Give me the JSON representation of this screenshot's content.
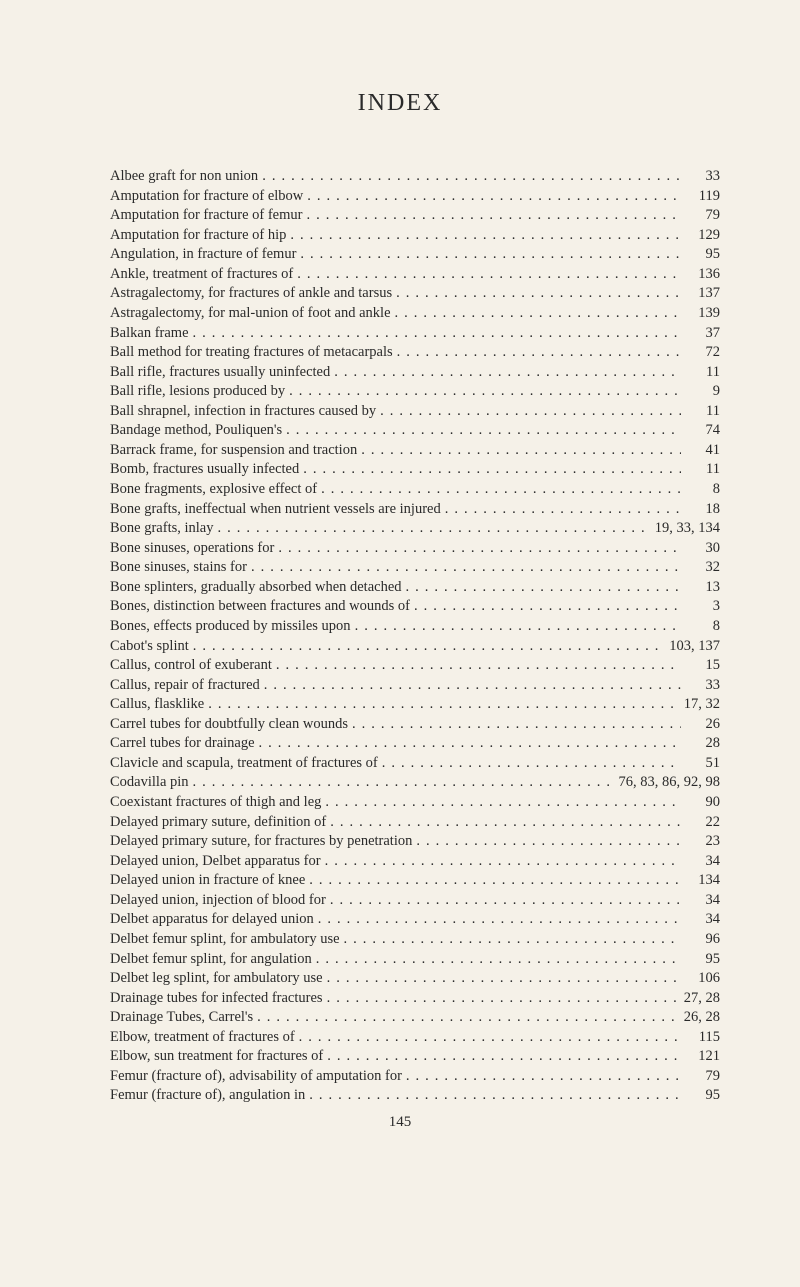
{
  "title": "INDEX",
  "footer_page": "145",
  "entries": [
    {
      "text": "Albee graft for non union",
      "page": "33"
    },
    {
      "text": "Amputation for fracture of elbow",
      "page": "119"
    },
    {
      "text": "Amputation for fracture of femur",
      "page": "79"
    },
    {
      "text": "Amputation for fracture of hip",
      "page": "129"
    },
    {
      "text": "Angulation, in fracture of femur",
      "page": "95"
    },
    {
      "text": "Ankle, treatment of fractures of",
      "page": "136"
    },
    {
      "text": "Astragalectomy, for fractures of ankle and tarsus",
      "page": "137"
    },
    {
      "text": "Astragalectomy, for mal-union of foot and ankle",
      "page": "139"
    },
    {
      "text": "Balkan frame",
      "page": "37"
    },
    {
      "text": "Ball method for treating fractures of metacarpals",
      "page": "72"
    },
    {
      "text": "Ball rifle, fractures usually uninfected",
      "page": "11"
    },
    {
      "text": "Ball rifle, lesions produced by",
      "page": "9"
    },
    {
      "text": "Ball shrapnel, infection in fractures caused by",
      "page": "11"
    },
    {
      "text": "Bandage method, Pouliquen's",
      "page": "74"
    },
    {
      "text": "Barrack frame, for suspension and traction",
      "page": "41"
    },
    {
      "text": "Bomb, fractures usually infected",
      "page": "11"
    },
    {
      "text": "Bone fragments, explosive effect of",
      "page": "8"
    },
    {
      "text": "Bone grafts, ineffectual when nutrient vessels are injured",
      "page": "18"
    },
    {
      "text": "Bone grafts, inlay",
      "page": "19, 33,  134"
    },
    {
      "text": "Bone sinuses, operations for",
      "page": "30"
    },
    {
      "text": "Bone sinuses, stains for",
      "page": "32"
    },
    {
      "text": "Bone splinters, gradually absorbed when detached",
      "page": "13"
    },
    {
      "text": "Bones, distinction between fractures and wounds of",
      "page": "3"
    },
    {
      "text": "Bones, effects produced by missiles upon",
      "page": "8"
    },
    {
      "text": "Cabot's splint",
      "page": "103,  137"
    },
    {
      "text": "Callus, control of exuberant",
      "page": "15"
    },
    {
      "text": "Callus, repair of fractured",
      "page": "33"
    },
    {
      "text": "Callus, flasklike",
      "page": "17,   32"
    },
    {
      "text": "Carrel tubes for doubtfully clean wounds",
      "page": "26"
    },
    {
      "text": "Carrel tubes for drainage",
      "page": "28"
    },
    {
      "text": "Clavicle and scapula, treatment of fractures of",
      "page": "51"
    },
    {
      "text": "Codavilla pin",
      "page": "76, 83, 86, 92,   98"
    },
    {
      "text": "Coexistant fractures of thigh and leg",
      "page": "90"
    },
    {
      "text": "Delayed primary suture, definition of",
      "page": "22"
    },
    {
      "text": "Delayed primary suture, for fractures by penetration",
      "page": "23"
    },
    {
      "text": "Delayed union, Delbet apparatus for",
      "page": "34"
    },
    {
      "text": "Delayed union in fracture of knee",
      "page": "134"
    },
    {
      "text": "Delayed union, injection of blood for",
      "page": "34"
    },
    {
      "text": "Delbet apparatus for delayed union",
      "page": "34"
    },
    {
      "text": "Delbet femur splint, for ambulatory use",
      "page": "96"
    },
    {
      "text": "Delbet femur splint, for angulation",
      "page": "95"
    },
    {
      "text": "Delbet leg splint, for ambulatory use",
      "page": "106"
    },
    {
      "text": "Drainage tubes for infected fractures",
      "page": "27,   28"
    },
    {
      "text": "Drainage Tubes, Carrel's",
      "page": "26,   28"
    },
    {
      "text": "Elbow, treatment of fractures of",
      "page": "115"
    },
    {
      "text": "Elbow, sun treatment for fractures of",
      "page": "121"
    },
    {
      "text": "Femur (fracture of), advisability of amputation for",
      "page": "79"
    },
    {
      "text": "Femur (fracture of), angulation in",
      "page": "95"
    }
  ]
}
